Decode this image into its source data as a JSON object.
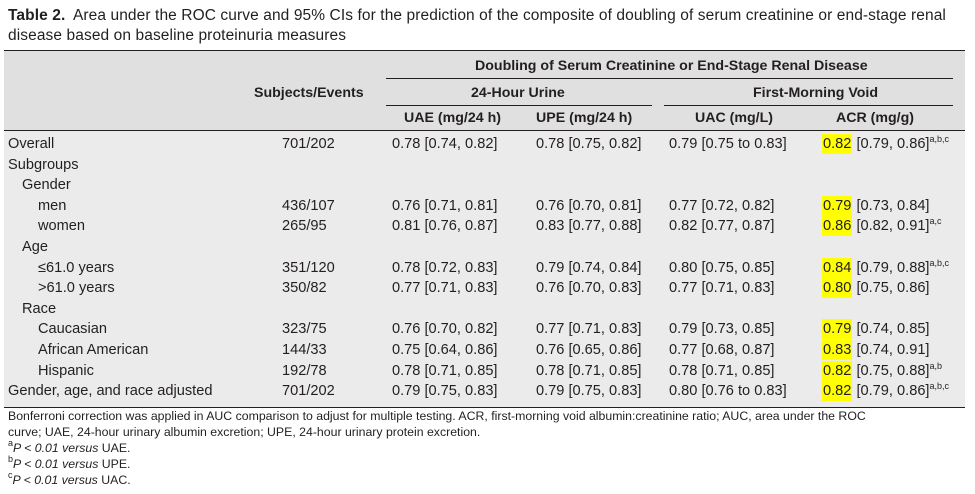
{
  "caption": {
    "label": "Table 2.",
    "text": "Area under the ROC curve and 95% CIs for the prediction of the composite of doubling of serum creatinine or end-stage renal disease based on baseline proteinuria measures"
  },
  "headers": {
    "group_title": "Doubling of Serum Creatinine or End-Stage Renal Disease",
    "subjects": "Subjects/Events",
    "urine24": "24-Hour Urine",
    "fmv": "First-Morning Void",
    "uae": "UAE (mg/24 h)",
    "upe": "UPE (mg/24 h)",
    "uac": "UAC (mg/L)",
    "acr": "ACR (mg/g)"
  },
  "rows": [
    {
      "label": "Overall",
      "subjects": "701/202",
      "uae": "0.78 [0.74, 0.82]",
      "upe": "0.78 [0.75, 0.82]",
      "uac": "0.79 [0.75 to 0.83]",
      "acr_auc": "0.82",
      "acr_ci": " [0.79, 0.86]",
      "acr_sup": "a,b,c"
    },
    {
      "label": "Subgroups"
    },
    {
      "label": "Gender"
    },
    {
      "label": "men",
      "subjects": "436/107",
      "uae": "0.76 [0.71, 0.81]",
      "upe": "0.76 [0.70, 0.81]",
      "uac": "0.77 [0.72, 0.82]",
      "acr_auc": "0.79",
      "acr_ci": " [0.73, 0.84]",
      "acr_sup": ""
    },
    {
      "label": "women",
      "subjects": "265/95",
      "uae": "0.81 [0.76, 0.87]",
      "upe": "0.83 [0.77, 0.88]",
      "uac": "0.82 [0.77, 0.87]",
      "acr_auc": "0.86",
      "acr_ci": " [0.82, 0.91]",
      "acr_sup": "a,c"
    },
    {
      "label": "Age"
    },
    {
      "label": "≤61.0 years",
      "subjects": "351/120",
      "uae": "0.78 [0.72, 0.83]",
      "upe": "0.79 [0.74, 0.84]",
      "uac": "0.80 [0.75, 0.85]",
      "acr_auc": "0.84",
      "acr_ci": " [0.79, 0.88]",
      "acr_sup": "a,b,c"
    },
    {
      "label": ">61.0 years",
      "subjects": "350/82",
      "uae": "0.77 [0.71, 0.83]",
      "upe": "0.76 [0.70, 0.83]",
      "uac": "0.77 [0.71, 0.83]",
      "acr_auc": "0.80",
      "acr_ci": " [0.75, 0.86]",
      "acr_sup": ""
    },
    {
      "label": "Race"
    },
    {
      "label": "Caucasian",
      "subjects": "323/75",
      "uae": "0.76 [0.70, 0.82]",
      "upe": "0.77 [0.71, 0.83]",
      "uac": "0.79 [0.73, 0.85]",
      "acr_auc": "0.79",
      "acr_ci": " [0.74, 0.85]",
      "acr_sup": ""
    },
    {
      "label": "African American",
      "subjects": "144/33",
      "uae": "0.75 [0.64, 0.86]",
      "upe": "0.76 [0.65, 0.86]",
      "uac": "0.77 [0.68, 0.87]",
      "acr_auc": "0.83",
      "acr_ci": " [0.74, 0.91]",
      "acr_sup": ""
    },
    {
      "label": "Hispanic",
      "subjects": "192/78",
      "uae": "0.78 [0.71, 0.85]",
      "upe": "0.78 [0.71, 0.85]",
      "uac": "0.78 [0.71, 0.85]",
      "acr_auc": "0.82",
      "acr_ci": " [0.75, 0.88]",
      "acr_sup": "a,b"
    },
    {
      "label": "Gender, age, and race adjusted",
      "subjects": "701/202",
      "uae": "0.79 [0.75, 0.83]",
      "upe": "0.79 [0.75, 0.83]",
      "uac": "0.80 [0.76 to 0.83]",
      "acr_auc": "0.82",
      "acr_ci": " [0.79, 0.86]",
      "acr_sup": "a,b,c"
    }
  ],
  "footnotes": {
    "line1": "Bonferroni correction was applied in AUC comparison to adjust for multiple testing. ACR, first-morning void albumin:creatinine ratio; AUC, area under the ROC",
    "line2": "curve; UAE, 24-hour urinary albumin excretion; UPE, 24-hour urinary protein excretion.",
    "a_mark": "a",
    "a_pre": "P < 0.01 ",
    "a_versus": "versus",
    "a_post": " UAE.",
    "b_mark": "b",
    "b_pre": "P < 0.01 ",
    "b_versus": "versus",
    "b_post": " UPE.",
    "c_mark": "c",
    "c_pre": "P < 0.01 ",
    "c_versus": "versus",
    "c_post": " UAC."
  },
  "colors": {
    "highlight": "#ffff00",
    "table_bg": "#ebebeb",
    "text": "#231f20"
  }
}
